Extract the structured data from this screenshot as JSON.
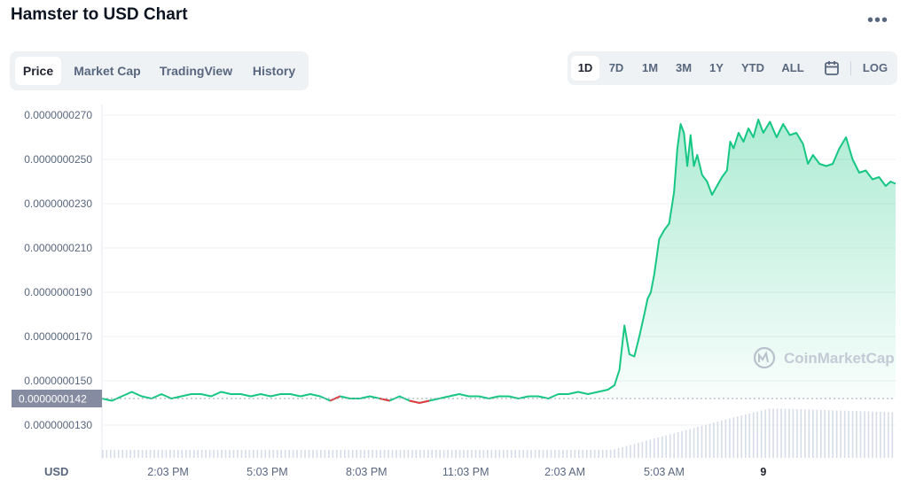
{
  "header": {
    "title": "Hamster to USD Chart",
    "more_label": "•••"
  },
  "tabs": [
    {
      "label": "Price",
      "active": true
    },
    {
      "label": "Market Cap",
      "active": false
    },
    {
      "label": "TradingView",
      "active": false
    },
    {
      "label": "History",
      "active": false
    }
  ],
  "ranges": [
    {
      "label": "1D",
      "active": true
    },
    {
      "label": "7D",
      "active": false
    },
    {
      "label": "1M",
      "active": false
    },
    {
      "label": "3M",
      "active": false
    },
    {
      "label": "1Y",
      "active": false
    },
    {
      "label": "YTD",
      "active": false
    },
    {
      "label": "ALL",
      "active": false
    }
  ],
  "log_label": "LOG",
  "calendar_icon": "calendar-icon",
  "watermark": "CoinMarketCap",
  "colors": {
    "up": "#16c784",
    "down": "#ea3943",
    "fill": "#16c784",
    "badge": "#858ca2",
    "volume": "#cfd6e4"
  },
  "chart_data": {
    "type": "area",
    "currency_label": "USD",
    "y_ticks": [
      "0.0000000270",
      "0.0000000250",
      "0.0000000230",
      "0.0000000210",
      "0.0000000190",
      "0.0000000170",
      "0.0000000150",
      "0.0000000130"
    ],
    "y_tick_values": [
      2.7e-08,
      2.5e-08,
      2.3e-08,
      2.1e-08,
      1.9e-08,
      1.7e-08,
      1.5e-08,
      1.3e-08
    ],
    "ylim": [
      1.24e-08,
      2.76e-08
    ],
    "x_tick_labels": [
      "2:03 PM",
      "5:03 PM",
      "8:03 PM",
      "11:03 PM",
      "2:03 AM",
      "5:03 AM",
      "9"
    ],
    "x_tick_hours": [
      2,
      5,
      8,
      11,
      14,
      17,
      20
    ],
    "x_range_hours": [
      0,
      24
    ],
    "open_price_label": "0.0000000142",
    "open_price": 1.42e-08,
    "series": [
      {
        "x": [
          0,
          0.3,
          0.6,
          0.9,
          1.2,
          1.5,
          1.8,
          2.1,
          2.4,
          2.7,
          3.0,
          3.3,
          3.6,
          3.9,
          4.2,
          4.5,
          4.8,
          5.1,
          5.4,
          5.7,
          6.0,
          6.3,
          6.6,
          6.9,
          7.2,
          7.5,
          7.8,
          8.1,
          8.4,
          8.7,
          9.0,
          9.3,
          9.6,
          9.9,
          10.2,
          10.5,
          10.8,
          11.1,
          11.4,
          11.7,
          12.0,
          12.3,
          12.6,
          12.9,
          13.2,
          13.5,
          13.8,
          14.1,
          14.4,
          14.7,
          15.0,
          15.3,
          15.5,
          15.65,
          15.8,
          15.95,
          16.1,
          16.25,
          16.4,
          16.5,
          16.6,
          16.7,
          16.85,
          17.0,
          17.15,
          17.3,
          17.4,
          17.5,
          17.6,
          17.7,
          17.8,
          17.9,
          18.0,
          18.15,
          18.3,
          18.45,
          18.6,
          18.75,
          18.9,
          19.0,
          19.1,
          19.25,
          19.4,
          19.55,
          19.7,
          19.85,
          20.0,
          20.2,
          20.4,
          20.6,
          20.8,
          21.0,
          21.2,
          21.35,
          21.5,
          21.7,
          21.9,
          22.1,
          22.3,
          22.5,
          22.7,
          22.9,
          23.1,
          23.3,
          23.5,
          23.7,
          23.85,
          24.0
        ],
        "y": [
          1.42e-08,
          1.41e-08,
          1.43e-08,
          1.45e-08,
          1.43e-08,
          1.42e-08,
          1.44e-08,
          1.42e-08,
          1.43e-08,
          1.44e-08,
          1.44e-08,
          1.43e-08,
          1.45e-08,
          1.44e-08,
          1.44e-08,
          1.43e-08,
          1.44e-08,
          1.43e-08,
          1.44e-08,
          1.44e-08,
          1.43e-08,
          1.44e-08,
          1.43e-08,
          1.41e-08,
          1.43e-08,
          1.42e-08,
          1.42e-08,
          1.43e-08,
          1.42e-08,
          1.41e-08,
          1.43e-08,
          1.41e-08,
          1.4e-08,
          1.41e-08,
          1.42e-08,
          1.43e-08,
          1.44e-08,
          1.43e-08,
          1.43e-08,
          1.42e-08,
          1.43e-08,
          1.43e-08,
          1.42e-08,
          1.43e-08,
          1.43e-08,
          1.42e-08,
          1.44e-08,
          1.44e-08,
          1.45e-08,
          1.44e-08,
          1.45e-08,
          1.46e-08,
          1.48e-08,
          1.55e-08,
          1.75e-08,
          1.62e-08,
          1.61e-08,
          1.7e-08,
          1.8e-08,
          1.87e-08,
          1.9e-08,
          1.98e-08,
          2.14e-08,
          2.18e-08,
          2.21e-08,
          2.35e-08,
          2.55e-08,
          2.66e-08,
          2.62e-08,
          2.47e-08,
          2.61e-08,
          2.47e-08,
          2.52e-08,
          2.43e-08,
          2.4e-08,
          2.34e-08,
          2.38e-08,
          2.42e-08,
          2.45e-08,
          2.58e-08,
          2.55e-08,
          2.62e-08,
          2.58e-08,
          2.64e-08,
          2.6e-08,
          2.68e-08,
          2.62e-08,
          2.67e-08,
          2.6e-08,
          2.66e-08,
          2.61e-08,
          2.62e-08,
          2.57e-08,
          2.48e-08,
          2.52e-08,
          2.48e-08,
          2.47e-08,
          2.48e-08,
          2.55e-08,
          2.6e-08,
          2.5e-08,
          2.44e-08,
          2.45e-08,
          2.41e-08,
          2.42e-08,
          2.38e-08,
          2.4e-08,
          2.39e-08
        ]
      }
    ],
    "down_segments": [
      [
        6.9,
        7.2
      ],
      [
        8.4,
        8.7
      ],
      [
        9.3,
        9.9
      ]
    ],
    "grid": true,
    "legend": "none"
  }
}
